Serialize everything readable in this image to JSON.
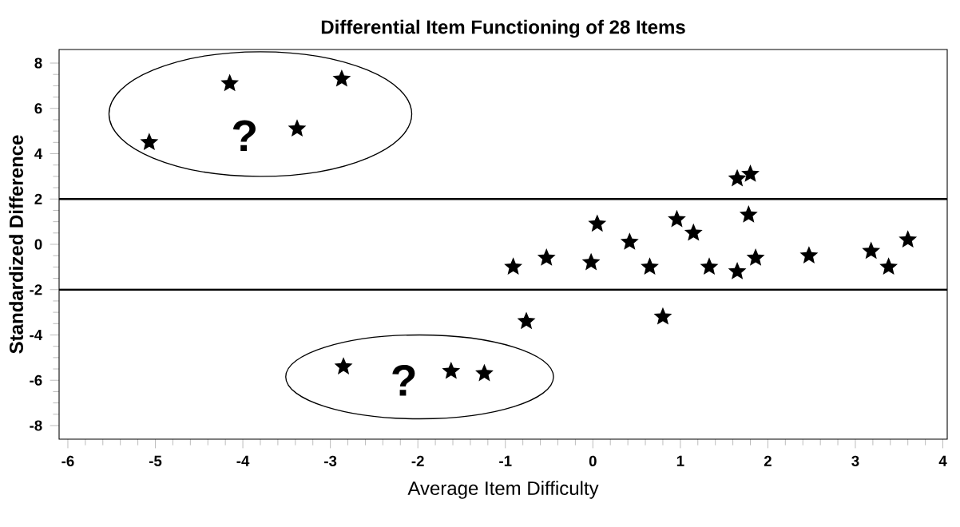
{
  "chart_data": {
    "type": "scatter",
    "title": "Differential Item Functioning of 28 Items",
    "xlabel": "Average Item Difficulty",
    "ylabel": "Standardized Difference",
    "x": [
      -5.07,
      -4.15,
      -3.38,
      -2.87,
      -2.85,
      -1.62,
      -1.24,
      -0.91,
      -0.53,
      -0.02,
      0.05,
      0.42,
      0.65,
      0.96,
      1.15,
      1.33,
      1.65,
      1.65,
      1.8,
      1.78,
      1.86,
      2.47,
      3.18,
      3.38,
      3.6,
      -0.76,
      0.8
    ],
    "values": [
      4.5,
      7.1,
      5.1,
      7.3,
      -5.4,
      -5.6,
      -5.7,
      -1.0,
      -0.6,
      -0.8,
      0.9,
      0.1,
      -1.0,
      1.1,
      0.5,
      -1.0,
      -1.2,
      2.9,
      3.1,
      1.3,
      -0.6,
      -0.5,
      -0.3,
      -1.0,
      0.2,
      -3.4,
      -3.2
    ],
    "color": "#000000",
    "marker": "star",
    "xlim": [
      -6.1,
      4.05
    ],
    "ylim": [
      -8.6,
      8.6
    ],
    "xticks": [
      -6,
      -5,
      -4,
      -3,
      -2,
      -1,
      0,
      1,
      2,
      3,
      4
    ],
    "yticks": [
      -8,
      -6,
      -4,
      -2,
      0,
      2,
      4,
      6,
      8
    ],
    "ref_lines": [
      {
        "axis": "y",
        "value": 2
      },
      {
        "axis": "y",
        "value": -2
      }
    ],
    "annotations": [
      "?",
      "?"
    ],
    "grid": false
  }
}
